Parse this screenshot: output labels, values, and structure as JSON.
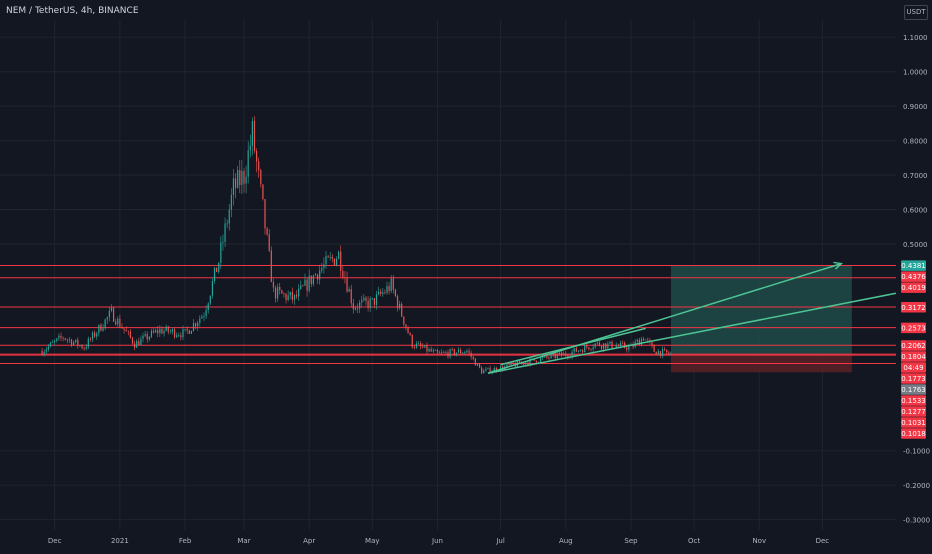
{
  "header": {
    "title": "NEM / TetherUS, 4h, BINANCE",
    "currency": "USDT"
  },
  "colors": {
    "background": "#131722",
    "grid": "#1f2430",
    "up": "#26a69a",
    "down": "#ef5350",
    "level_line": "#f23645",
    "trend_line": "#4cc493",
    "profit_zone": "#1f4a48",
    "loss_zone": "#5b2127",
    "axis_text": "#b2b5be"
  },
  "chart_data": {
    "type": "candlestick",
    "title": "NEM / TetherUS, 4h, BINANCE",
    "yticks": [
      "1.1000",
      "1.0000",
      "0.9000",
      "0.8000",
      "0.7000",
      "0.6000",
      "0.5000",
      "-0.1000",
      "-0.2000",
      "-0.3000"
    ],
    "xticks": [
      "Dec",
      "2021",
      "Feb",
      "Mar",
      "Apr",
      "May",
      "Jun",
      "Jul",
      "Aug",
      "Sep",
      "Oct",
      "Nov",
      "Dec"
    ],
    "ylim": [
      -0.33,
      1.15
    ],
    "price_path": [
      [
        "2020-11-25",
        0.19
      ],
      [
        "2020-12-05",
        0.23
      ],
      [
        "2020-12-15",
        0.2
      ],
      [
        "2020-12-28",
        0.3
      ],
      [
        "2021-01-08",
        0.21
      ],
      [
        "2021-01-20",
        0.25
      ],
      [
        "2021-02-01",
        0.24
      ],
      [
        "2021-02-10",
        0.3
      ],
      [
        "2021-02-17",
        0.45
      ],
      [
        "2021-02-24",
        0.66
      ],
      [
        "2021-03-01",
        0.7
      ],
      [
        "2021-03-05",
        0.82
      ],
      [
        "2021-03-10",
        0.6
      ],
      [
        "2021-03-15",
        0.36
      ],
      [
        "2021-03-25",
        0.34
      ],
      [
        "2021-04-05",
        0.42
      ],
      [
        "2021-04-15",
        0.47
      ],
      [
        "2021-04-22",
        0.32
      ],
      [
        "2021-05-01",
        0.33
      ],
      [
        "2021-05-10",
        0.38
      ],
      [
        "2021-05-20",
        0.21
      ],
      [
        "2021-06-01",
        0.18
      ],
      [
        "2021-06-15",
        0.19
      ],
      [
        "2021-06-22",
        0.13
      ],
      [
        "2021-07-01",
        0.14
      ],
      [
        "2021-07-15",
        0.16
      ],
      [
        "2021-08-01",
        0.18
      ],
      [
        "2021-08-15",
        0.21
      ],
      [
        "2021-09-01",
        0.2
      ],
      [
        "2021-09-07",
        0.23
      ],
      [
        "2021-09-12",
        0.19
      ],
      [
        "2021-09-20",
        0.18
      ]
    ],
    "x_min": "2020-11-05",
    "x_max": "2022-01-05",
    "horizontal_levels": [
      0.4376,
      0.4019,
      0.3172,
      0.2573,
      0.2062,
      0.1804,
      0.1773,
      0.1533
    ],
    "trend_lines": [
      {
        "from": [
          "2021-06-25",
          0.125
        ],
        "to": [
          "2021-12-10",
          0.443
        ],
        "arrow": true
      },
      {
        "from": [
          "2021-06-25",
          0.125
        ],
        "to": [
          "2022-01-05",
          0.357
        ],
        "arrow": false
      },
      {
        "from": [
          "2021-07-01",
          0.15
        ],
        "to": [
          "2021-09-08",
          0.255
        ],
        "arrow": false
      }
    ],
    "position": {
      "start": "2021-09-20",
      "end": "2021-12-15",
      "entry": 0.1804,
      "target": 0.4381,
      "stop": 0.1277
    },
    "price_labels": [
      {
        "text": "0.4381",
        "value": 0.4381,
        "color": "#26a69a"
      },
      {
        "text": "0.4376",
        "value": 0.4376,
        "color": "#f23645"
      },
      {
        "text": "0.4019",
        "value": 0.4019,
        "color": "#f23645"
      },
      {
        "text": "0.3172",
        "value": 0.3172,
        "color": "#f23645"
      },
      {
        "text": "0.2573",
        "value": 0.2573,
        "color": "#f23645"
      },
      {
        "text": "0.2062",
        "value": 0.2062,
        "color": "#f23645"
      },
      {
        "text": "0.1804",
        "value": 0.1804,
        "color": "#f23645"
      },
      {
        "text": "04:49",
        "value": 0.1788,
        "color": "#f23645"
      },
      {
        "text": "0.1773",
        "value": 0.1773,
        "color": "#f23645"
      },
      {
        "text": "0.1763",
        "value": 0.1763,
        "color": "#787b86"
      },
      {
        "text": "0.1533",
        "value": 0.1533,
        "color": "#f23645"
      },
      {
        "text": "0.1277",
        "value": 0.1277,
        "color": "#f23645"
      },
      {
        "text": "0.1031",
        "value": 0.1031,
        "color": "#f23645"
      },
      {
        "text": "0.1018",
        "value": 0.1018,
        "color": "#f23645"
      }
    ]
  }
}
